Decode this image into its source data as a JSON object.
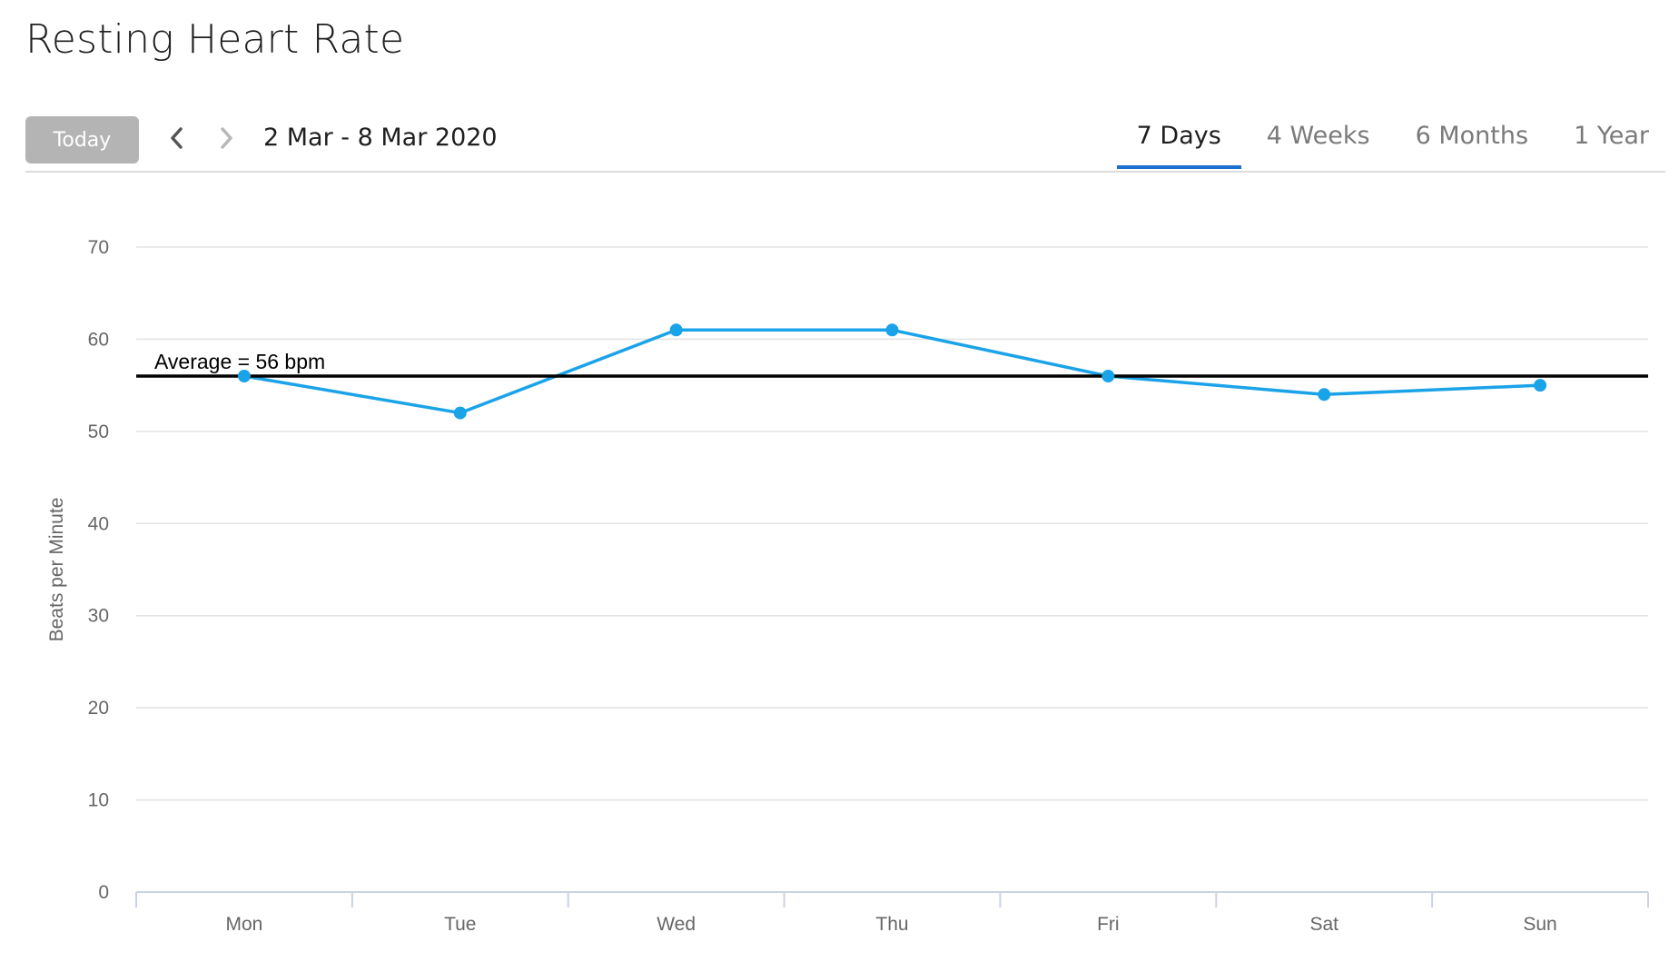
{
  "page": {
    "title": "Resting Heart Rate"
  },
  "toolbar": {
    "today_label": "Today",
    "date_range": "2 Mar - 8 Mar 2020",
    "tabs": [
      {
        "label": "7 Days",
        "active": true
      },
      {
        "label": "4 Weeks",
        "active": false
      },
      {
        "label": "6 Months",
        "active": false
      },
      {
        "label": "1 Year",
        "active": false
      }
    ]
  },
  "icons": {
    "prev": "chevron-left-icon",
    "next": "chevron-right-icon"
  },
  "colors": {
    "series": "#1aa3e8",
    "average_line": "#000000",
    "active_tab_underline": "#1a6fcf",
    "today_button": "#b4b4b4"
  },
  "chart_data": {
    "type": "line",
    "title": "",
    "xlabel": "",
    "ylabel": "Beats per Minute",
    "categories": [
      "Mon",
      "Tue",
      "Wed",
      "Thu",
      "Fri",
      "Sat",
      "Sun"
    ],
    "series": [
      {
        "values": [
          56,
          52,
          61,
          61,
          56,
          54,
          55
        ]
      }
    ],
    "ylim": [
      0,
      70
    ],
    "yticks": [
      0,
      10,
      20,
      30,
      40,
      50,
      60,
      70
    ],
    "grid": true,
    "legend": "none",
    "average": {
      "value": 56,
      "label": "Average = 56 bpm"
    }
  }
}
